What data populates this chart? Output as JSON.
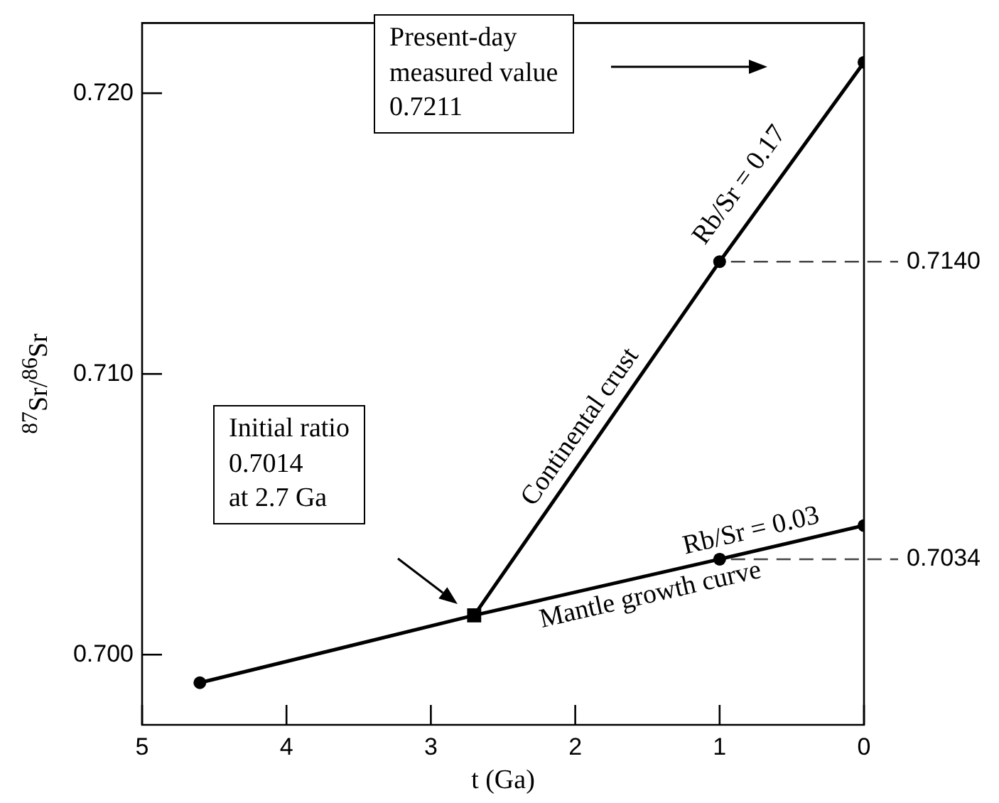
{
  "chart_data": {
    "type": "line",
    "xlabel": "t (Ga)",
    "ylabel": "$^{87}$Sr/$^{86}$Sr",
    "xlim": [
      5,
      0
    ],
    "xticks": [
      5,
      4,
      3,
      2,
      1,
      0
    ],
    "ylim": [
      0.6975,
      0.7225
    ],
    "yticks": [
      {
        "value": 0.7,
        "label": "0.700"
      },
      {
        "value": 0.71,
        "label": "0.710"
      },
      {
        "value": 0.72,
        "label": "0.720"
      }
    ],
    "marker": "circle",
    "line_style": "solid",
    "series": [
      {
        "name": "Continental crust",
        "color": "#000000",
        "x": [
          2.7,
          1,
          0
        ],
        "values": [
          0.7014,
          0.714,
          0.7211
        ],
        "value_labels": [
          null,
          "0.7140",
          null
        ]
      },
      {
        "name": "Mantle growth curve",
        "color": "#000000",
        "x": [
          4.6,
          2.7,
          1,
          0
        ],
        "values": [
          0.699,
          0.7014,
          0.7034,
          0.7046
        ],
        "value_labels": [
          null,
          null,
          "0.7034",
          null
        ]
      },
      {
        "type": "scatter",
        "marker": "square",
        "color": "#000000",
        "x": [
          2.7
        ],
        "values": [
          0.7014
        ]
      }
    ],
    "annotations": [
      "Present-day\nmeasured value\n0.7211",
      "Initial ratio\n0.7014\nat 2.7 Ga",
      "Rb/Sr = 0.17",
      "Rb/Sr = 0.03"
    ]
  }
}
